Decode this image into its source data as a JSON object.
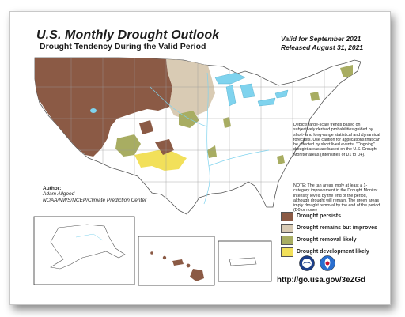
{
  "map": {
    "title": "U.S. Monthly Drought Outlook",
    "subtitle": "Drought Tendency During the Valid Period",
    "valid_for": "Valid for September 2021",
    "released": "Released August 31, 2021",
    "description": "Depicts large-scale trends based on subjectively derived probabilities guided by short- and long-range statistical and dynamical forecasts. Use caution for applications that can be affected by short lived events. \"Ongoing\" drought areas are based on the U.S. Drought Monitor areas (intensities of D1 to D4).",
    "note": "NOTE: The tan areas imply at least a 1-category improvement in the Drought Monitor intensity levels by the end of the period, although drought will remain. The green areas imply drought removal by the end of the period (D0 or none)",
    "author_label": "Author:",
    "author_name": "Adam Allgood",
    "author_org": "NOAA/NWS/NCEP/Climate Prediction Center",
    "url": "http://go.usa.gov/3eZGd"
  },
  "legend": [
    {
      "label": "Drought persists",
      "color": "#8b5a45"
    },
    {
      "label": "Drought remains but improves",
      "color": "#d9cbb4"
    },
    {
      "label": "Drought removal likely",
      "color": "#a8ad62"
    },
    {
      "label": "Drought development likely",
      "color": "#f2e05a"
    }
  ],
  "colors": {
    "persists": "#8b5a45",
    "improves": "#d9cbb4",
    "removal": "#a8ad62",
    "development": "#f2e05a",
    "water": "#7fd3ee",
    "border": "#7a7a7a"
  },
  "icons": {
    "noaa_logo": "noaa-logo",
    "nws_logo": "nws-logo"
  }
}
